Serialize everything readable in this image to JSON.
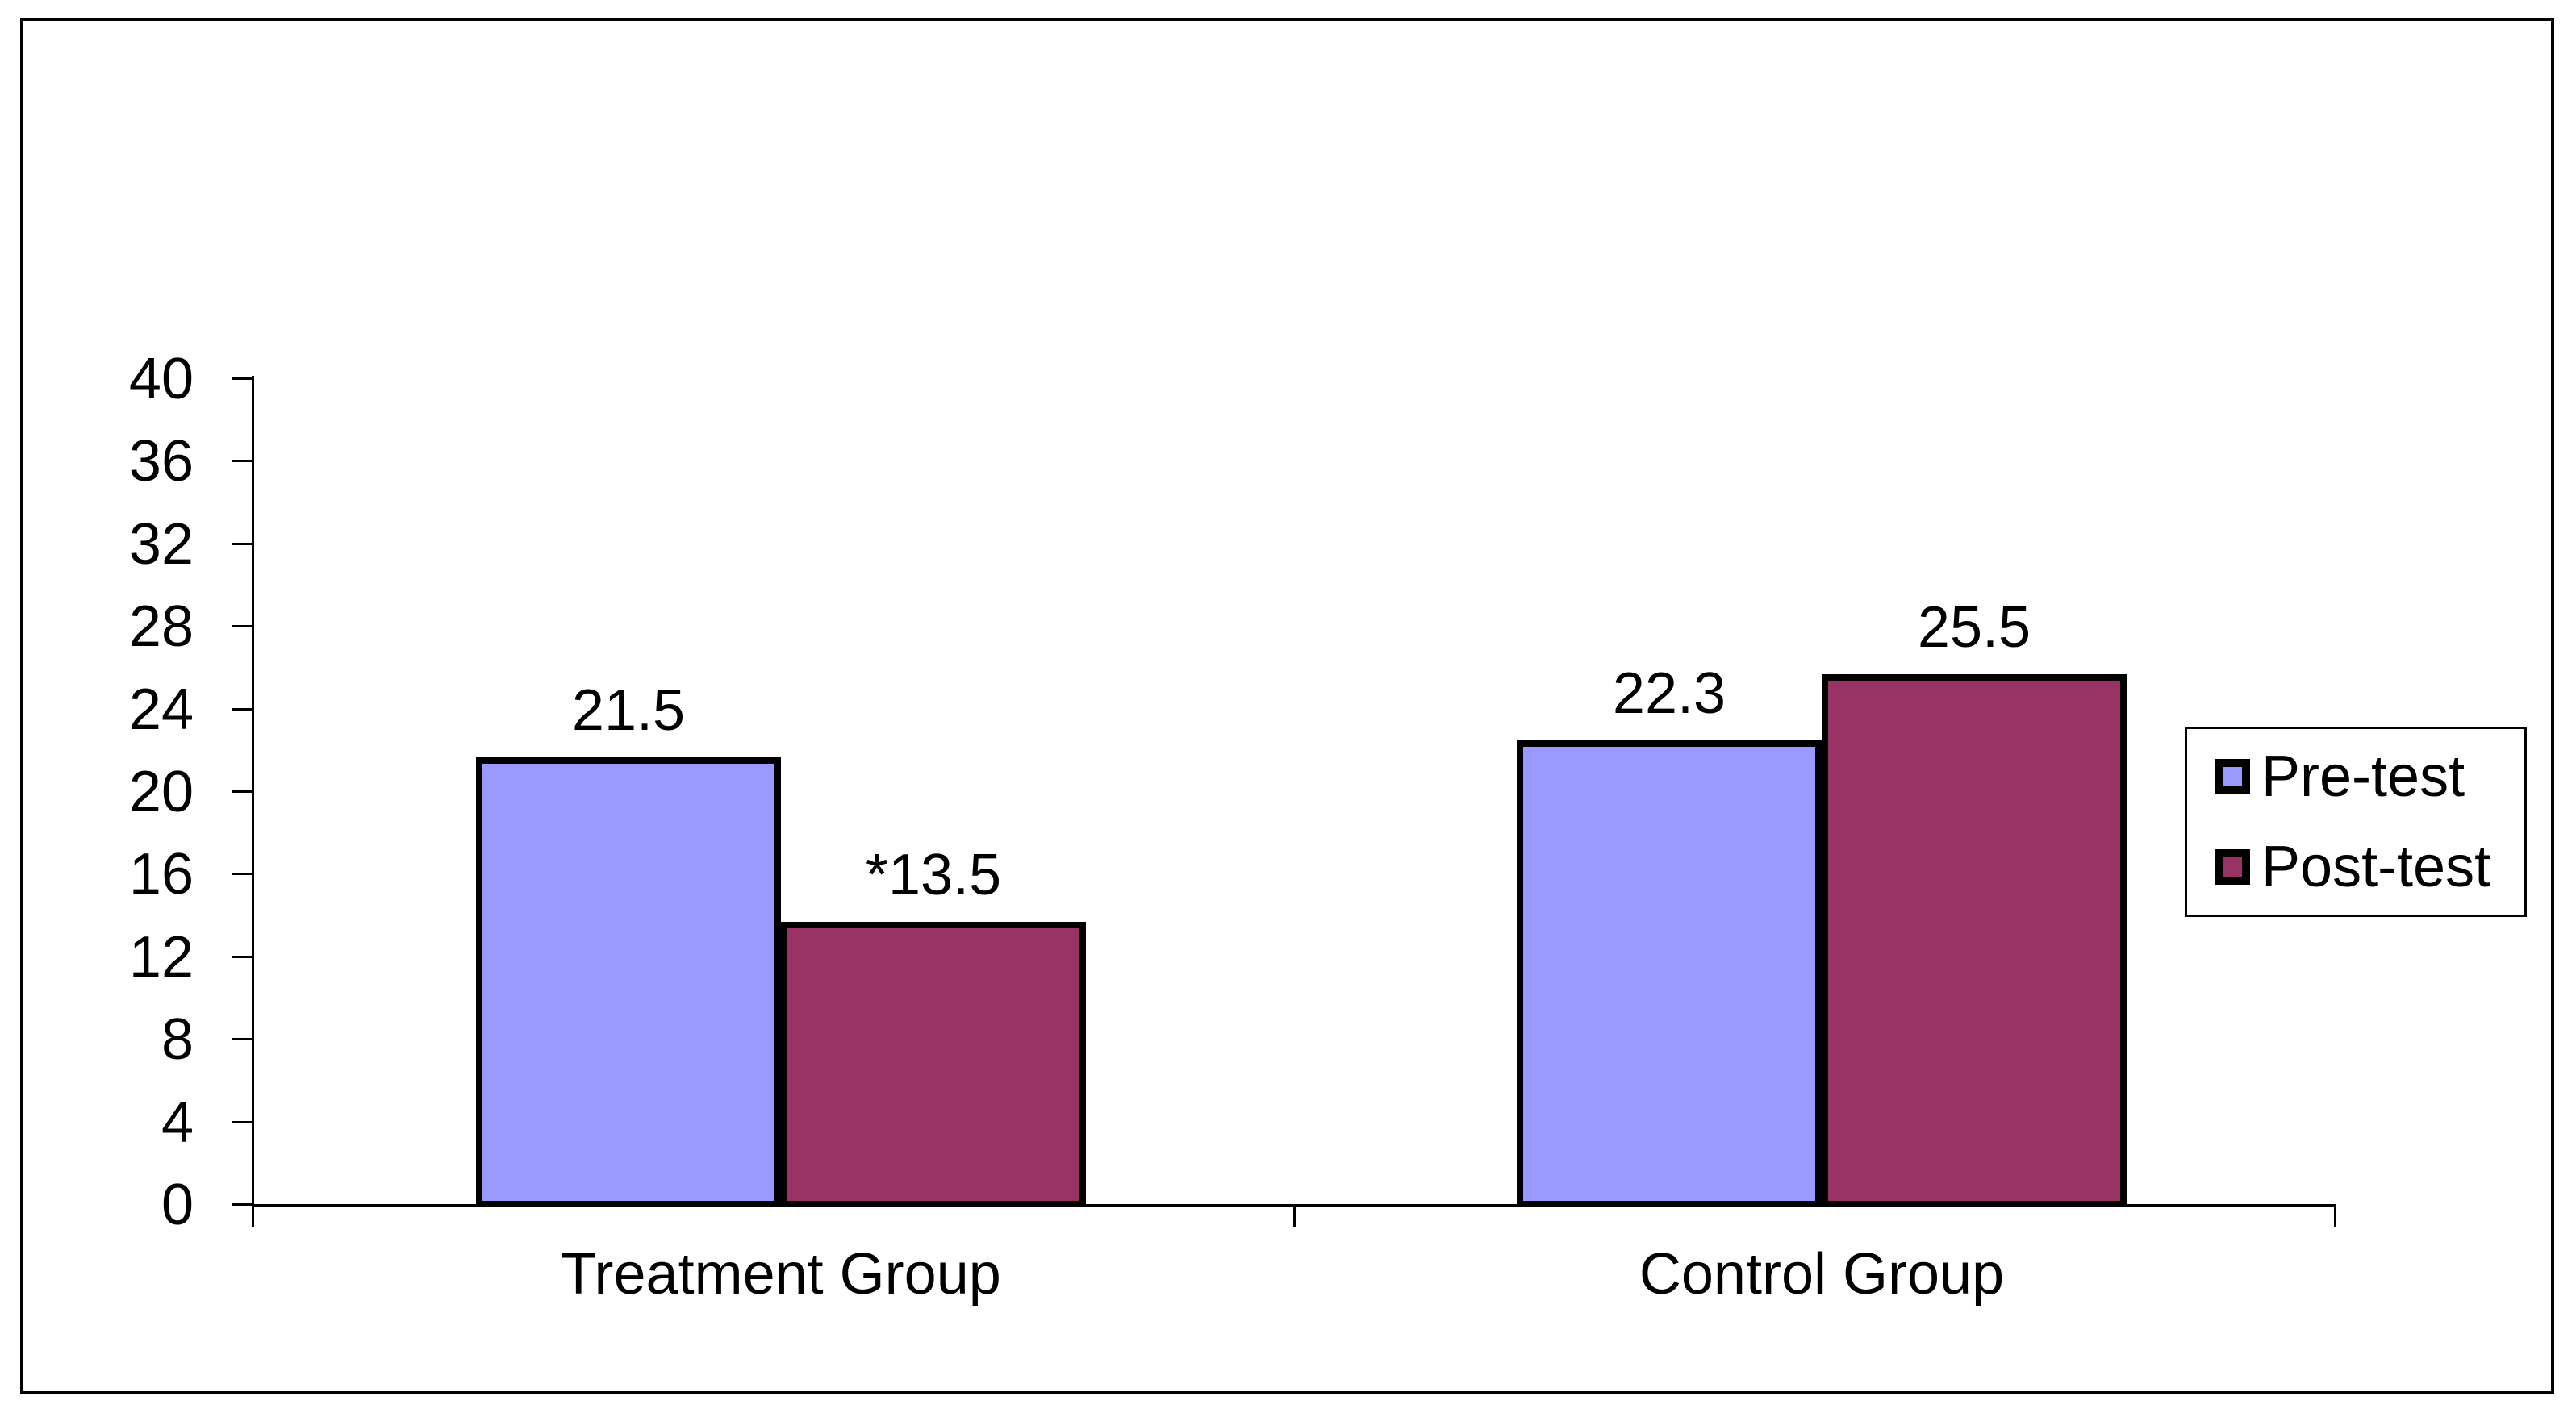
{
  "figure": {
    "background_color": "#ffffff",
    "border_color": "#000000"
  },
  "chart_data": {
    "type": "bar",
    "categories": [
      "Treatment Group",
      "Control Group"
    ],
    "series": [
      {
        "name": "Pre-test",
        "color": "#9999FF",
        "values": [
          21.5,
          22.3
        ],
        "data_labels": [
          "21.5",
          "22.3"
        ]
      },
      {
        "name": "Post-test",
        "color": "#993366",
        "values": [
          13.5,
          25.5
        ],
        "data_labels": [
          "*13.5",
          "25.5"
        ]
      }
    ],
    "ylim": [
      0,
      40
    ],
    "ytick_interval": 4,
    "ytick_labels": [
      "0",
      "4",
      "8",
      "12",
      "16",
      "20",
      "24",
      "28",
      "32",
      "36",
      "40"
    ],
    "grid": "off",
    "legend_position": "right",
    "bar_outline_color": "#000000",
    "axis_color": "#000000",
    "text_color": "#000000"
  }
}
